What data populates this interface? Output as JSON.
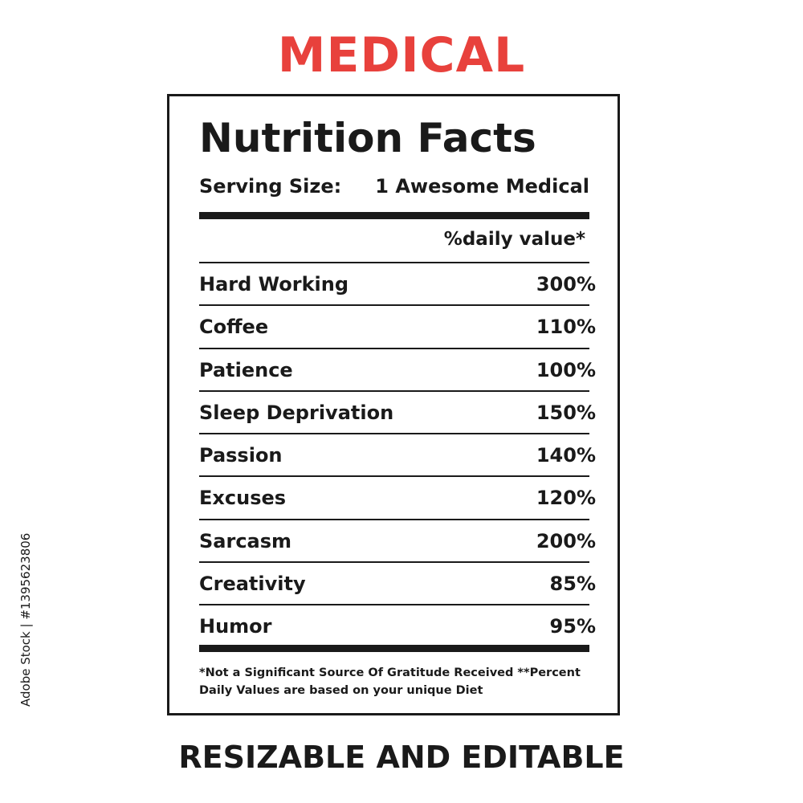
{
  "header": {
    "title": "MEDICAL"
  },
  "label": {
    "heading": "Nutrition Facts",
    "serving_label": "Serving Size:",
    "serving_value": "1 Awesome Medical",
    "daily_value_header": "%daily value*",
    "rows": [
      {
        "name": "Hard Working",
        "value": "300%"
      },
      {
        "name": "Coffee",
        "value": "110%"
      },
      {
        "name": "Patience",
        "value": "100%"
      },
      {
        "name": "Sleep Deprivation",
        "value": "150%"
      },
      {
        "name": "Passion",
        "value": "140%"
      },
      {
        "name": "Excuses",
        "value": "120%"
      },
      {
        "name": "Sarcasm",
        "value": "200%"
      },
      {
        "name": "Creativity",
        "value": "85%"
      },
      {
        "name": "Humor",
        "value": "95%"
      }
    ],
    "footnote": "*Not a Significant Source Of Gratitude Received **Percent Daily Values are based on your  unique Diet"
  },
  "footer": {
    "tagline": "RESIZABLE AND EDITABLE"
  },
  "side_credit": "Adobe Stock | #1395623806",
  "colors": {
    "title_red": "#e8413c",
    "ink": "#1a1a1a",
    "background": "#ffffff"
  }
}
